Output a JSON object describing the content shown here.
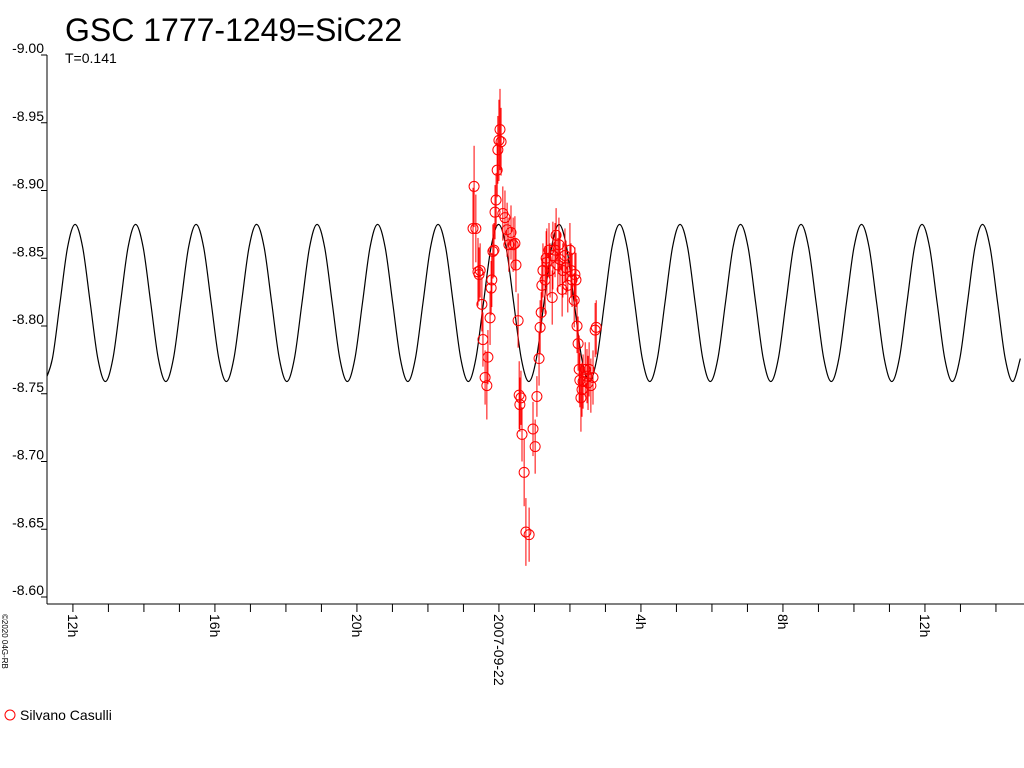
{
  "chart_data": {
    "type": "scatter",
    "title": "GSC 1777-1249=SiC22",
    "subtitle": "T=0.141",
    "credit": "©2020 04G-RB",
    "legend": "bottom-left",
    "xlim": [
      11.27,
      38.79
    ],
    "ylim": [
      -8.6,
      -9.0
    ],
    "xticks": [
      {
        "value": 12,
        "label": "12h"
      },
      {
        "value": 16,
        "label": "16h"
      },
      {
        "value": 20,
        "label": "20h"
      },
      {
        "value": 24,
        "label": "2007-09-22"
      },
      {
        "value": 28,
        "label": "4h"
      },
      {
        "value": 32,
        "label": "8h"
      },
      {
        "value": 36,
        "label": "12h"
      }
    ],
    "xminorticks": [
      13,
      14,
      15,
      17,
      18,
      19,
      21,
      22,
      23,
      25,
      26,
      27,
      29,
      30,
      31,
      33,
      34,
      35,
      37,
      38
    ],
    "yticks": [
      {
        "value": -9.0,
        "label": "-9.00"
      },
      {
        "value": -8.95,
        "label": "-8.95"
      },
      {
        "value": -8.9,
        "label": "-8.90"
      },
      {
        "value": -8.85,
        "label": "-8.85"
      },
      {
        "value": -8.8,
        "label": "-8.80"
      },
      {
        "value": -8.75,
        "label": "-8.75"
      },
      {
        "value": -8.7,
        "label": "-8.70"
      },
      {
        "value": -8.65,
        "label": "-8.65"
      },
      {
        "value": -8.6,
        "label": "-8.60"
      }
    ],
    "series": [
      {
        "type": "line",
        "color": "#000000",
        "x": [
          11.21,
          11.423,
          11.636,
          11.849,
          12.062,
          12.275,
          12.488,
          12.701,
          12.914,
          13.127,
          13.34,
          13.553,
          13.766,
          13.979,
          14.192,
          14.405,
          14.618,
          14.831,
          15.044,
          15.257,
          15.47,
          15.683,
          15.896,
          16.109,
          16.322,
          16.535,
          16.748,
          16.961,
          17.174,
          17.387,
          17.6,
          17.813,
          18.026,
          18.239,
          18.452,
          18.665,
          18.878,
          19.091,
          19.304,
          19.517,
          19.73,
          19.943,
          20.156,
          20.369,
          20.582,
          20.795,
          21.008,
          21.221,
          21.434,
          21.647,
          21.86,
          22.073,
          22.286,
          22.499,
          22.712,
          22.925,
          23.138,
          23.351,
          23.564,
          23.777,
          23.99,
          24.203,
          24.416,
          24.629,
          24.842,
          25.055,
          25.268,
          25.481,
          25.694,
          25.907,
          26.12,
          26.333,
          26.546,
          26.759,
          26.972,
          27.185,
          27.398,
          27.611,
          27.824,
          28.037,
          28.25,
          28.463,
          28.676,
          28.889,
          29.102,
          29.315,
          29.528,
          29.741,
          29.954,
          30.167,
          30.38,
          30.593,
          30.806,
          31.019,
          31.232,
          31.445,
          31.658,
          31.871,
          32.084,
          32.297,
          32.51,
          32.723,
          32.936,
          33.149,
          33.362,
          33.575,
          33.788,
          34.001,
          34.214,
          34.427,
          34.64,
          34.853,
          35.066,
          35.279,
          35.492,
          35.705,
          35.918,
          36.131,
          36.344,
          36.557,
          36.77,
          36.983,
          37.196,
          37.409,
          37.622,
          37.835,
          38.048,
          38.261,
          38.474,
          38.687
        ],
        "values": [
          -8.759,
          -8.776,
          -8.817,
          -8.858,
          -8.875,
          -8.858,
          -8.817,
          -8.776,
          -8.759,
          -8.776,
          -8.817,
          -8.858,
          -8.875,
          -8.858,
          -8.817,
          -8.776,
          -8.759,
          -8.776,
          -8.817,
          -8.858,
          -8.875,
          -8.858,
          -8.817,
          -8.776,
          -8.759,
          -8.776,
          -8.817,
          -8.858,
          -8.875,
          -8.858,
          -8.817,
          -8.776,
          -8.759,
          -8.776,
          -8.817,
          -8.858,
          -8.875,
          -8.858,
          -8.817,
          -8.776,
          -8.759,
          -8.776,
          -8.817,
          -8.858,
          -8.875,
          -8.858,
          -8.817,
          -8.776,
          -8.759,
          -8.776,
          -8.817,
          -8.858,
          -8.875,
          -8.858,
          -8.817,
          -8.776,
          -8.759,
          -8.776,
          -8.817,
          -8.858,
          -8.875,
          -8.858,
          -8.817,
          -8.776,
          -8.759,
          -8.776,
          -8.817,
          -8.858,
          -8.875,
          -8.858,
          -8.817,
          -8.776,
          -8.759,
          -8.776,
          -8.817,
          -8.858,
          -8.875,
          -8.858,
          -8.817,
          -8.776,
          -8.759,
          -8.776,
          -8.817,
          -8.858,
          -8.875,
          -8.858,
          -8.817,
          -8.776,
          -8.759,
          -8.776,
          -8.817,
          -8.858,
          -8.875,
          -8.858,
          -8.817,
          -8.776,
          -8.759,
          -8.776,
          -8.817,
          -8.858,
          -8.875,
          -8.858,
          -8.817,
          -8.776,
          -8.759,
          -8.776,
          -8.817,
          -8.858,
          -8.875,
          -8.858,
          -8.817,
          -8.776,
          -8.759,
          -8.776,
          -8.817,
          -8.858,
          -8.875,
          -8.858,
          -8.817,
          -8.776,
          -8.759,
          -8.776,
          -8.817,
          -8.858,
          -8.875,
          -8.858,
          -8.817,
          -8.776,
          -8.759,
          -8.776
        ]
      },
      {
        "name": "Silvano Casulli",
        "type": "errorbar",
        "color": "#ff0000",
        "x": [
          23.3,
          23.27,
          23.35,
          23.41,
          23.44,
          23.47,
          23.52,
          23.55,
          23.61,
          23.66,
          23.69,
          23.75,
          23.78,
          23.8,
          23.83,
          23.86,
          23.89,
          23.92,
          23.95,
          23.97,
          24.0,
          24.03,
          24.06,
          24.11,
          24.17,
          24.23,
          24.28,
          24.34,
          24.4,
          24.45,
          24.48,
          24.54,
          24.57,
          24.59,
          24.62,
          24.65,
          24.71,
          24.76,
          24.85,
          24.96,
          25.02,
          25.07,
          25.13,
          25.16,
          25.19,
          25.21,
          25.24,
          25.3,
          25.33,
          25.35,
          25.41,
          25.44,
          25.5,
          25.52,
          25.58,
          25.61,
          25.66,
          25.69,
          25.72,
          25.78,
          25.8,
          25.86,
          25.89,
          25.94,
          26.0,
          26.03,
          26.06,
          26.12,
          26.14,
          26.17,
          26.2,
          26.23,
          26.26,
          26.28,
          26.31,
          26.34,
          26.37,
          26.43,
          26.48,
          26.51,
          26.54,
          26.59,
          26.65,
          26.71,
          26.74
        ],
        "values": [
          -8.903,
          -8.872,
          -8.872,
          -8.84,
          -8.838,
          -8.841,
          -8.816,
          -8.79,
          -8.762,
          -8.756,
          -8.777,
          -8.806,
          -8.828,
          -8.834,
          -8.855,
          -8.856,
          -8.884,
          -8.893,
          -8.915,
          -8.93,
          -8.937,
          -8.945,
          -8.936,
          -8.883,
          -8.88,
          -8.871,
          -8.86,
          -8.869,
          -8.86,
          -8.861,
          -8.845,
          -8.804,
          -8.749,
          -8.742,
          -8.747,
          -8.72,
          -8.692,
          -8.648,
          -8.646,
          -8.724,
          -8.711,
          -8.748,
          -8.776,
          -8.799,
          -8.81,
          -8.83,
          -8.841,
          -8.834,
          -8.85,
          -8.847,
          -8.856,
          -8.841,
          -8.821,
          -8.852,
          -8.856,
          -8.867,
          -8.845,
          -8.86,
          -8.849,
          -8.827,
          -8.841,
          -8.852,
          -8.843,
          -8.83,
          -8.856,
          -8.841,
          -8.834,
          -8.819,
          -8.838,
          -8.834,
          -8.8,
          -8.787,
          -8.768,
          -8.76,
          -8.747,
          -8.753,
          -8.759,
          -8.768,
          -8.763,
          -8.758,
          -8.768,
          -8.756,
          -8.762,
          -8.797,
          -8.799
        ],
        "errors": [
          0.03,
          0.03,
          0.025,
          0.025,
          0.02,
          0.02,
          0.02,
          0.02,
          0.02,
          0.025,
          0.02,
          0.02,
          0.02,
          0.02,
          0.02,
          0.02,
          0.02,
          0.02,
          0.02,
          0.025,
          0.03,
          0.03,
          0.025,
          0.02,
          0.02,
          0.02,
          0.02,
          0.02,
          0.02,
          0.02,
          0.02,
          0.02,
          0.025,
          0.02,
          0.02,
          0.02,
          0.025,
          0.025,
          0.02,
          0.02,
          0.02,
          0.015,
          0.02,
          0.02,
          0.015,
          0.02,
          0.02,
          0.025,
          0.02,
          0.025,
          0.02,
          0.02,
          0.02,
          0.025,
          0.02,
          0.02,
          0.02,
          0.02,
          0.02,
          0.02,
          0.02,
          0.02,
          0.02,
          0.02,
          0.02,
          0.02,
          0.02,
          0.02,
          0.02,
          0.02,
          0.02,
          0.02,
          0.025,
          0.02,
          0.025,
          0.02,
          0.02,
          0.02,
          0.02,
          0.02,
          0.02,
          0.02,
          0.02,
          0.02,
          0.02
        ]
      }
    ]
  }
}
